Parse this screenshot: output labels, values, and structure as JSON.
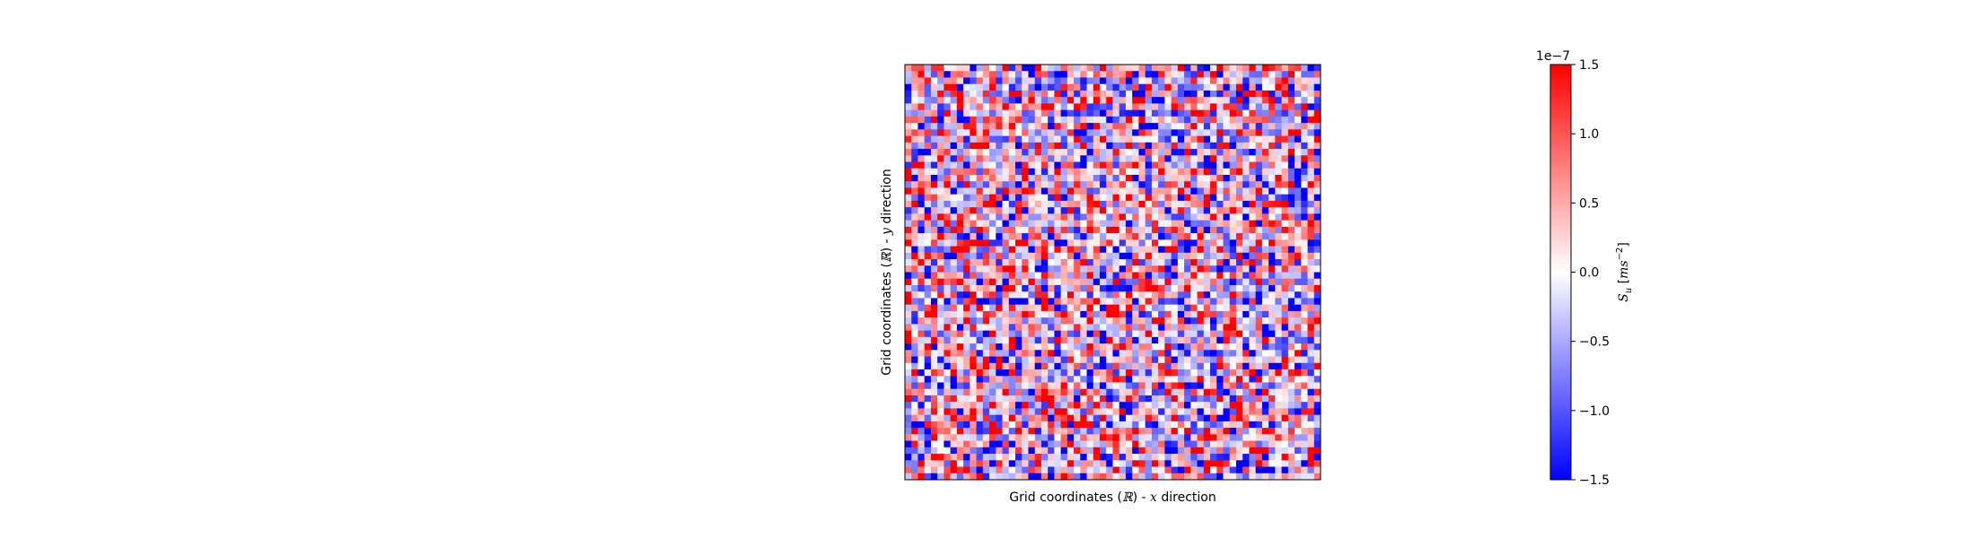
{
  "chart_data": {
    "type": "heatmap",
    "title": "",
    "xlabel_pre": "Grid coordinates (",
    "xlabel_sym": "ℝ",
    "xlabel_mid": ") - ",
    "xlabel_var": "x",
    "xlabel_post": " direction",
    "ylabel_pre": "Grid coordinates (",
    "ylabel_sym": "ℝ",
    "ylabel_mid": ") - ",
    "ylabel_var": "y",
    "ylabel_post": " direction",
    "x_ticks": "none",
    "y_ticks": "none",
    "grid": false,
    "grid_cells": {
      "rows": 64,
      "cols": 64
    },
    "colormap": {
      "name": "bwr",
      "low": "#0000ff",
      "mid": "#ffffff",
      "high": "#ff0000"
    },
    "colorbar": {
      "label_s": "S",
      "label_sub": "u",
      "label_unit_open": " [",
      "label_unit": "ms",
      "label_exp": "−2",
      "label_unit_close": "]",
      "offset_text": "1e−7",
      "vmin": -1.5,
      "vmax": 1.5,
      "ticks": [
        1.5,
        1.0,
        0.5,
        0.0,
        -0.5,
        -1.0,
        -1.5
      ],
      "tick_labels": [
        "1.5",
        "1.0",
        "0.5",
        "0.0",
        "−0.5",
        "−1.0",
        "−1.5"
      ]
    }
  }
}
